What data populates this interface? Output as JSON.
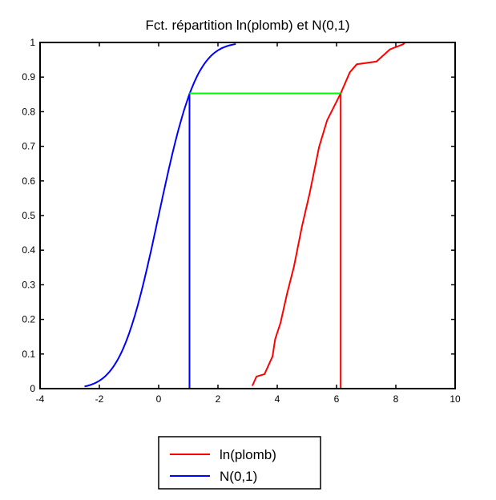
{
  "chart_data": {
    "type": "line",
    "title": "Fct. répartition ln(plomb) et N(0,1)",
    "xlabel": "",
    "ylabel": "",
    "xlim": [
      -4,
      10
    ],
    "ylim": [
      0,
      1
    ],
    "xticks": [
      "-4",
      "-2",
      "0",
      "2",
      "4",
      "6",
      "8",
      "10"
    ],
    "yticks": [
      "0",
      "0.1",
      "0.2",
      "0.3",
      "0.4",
      "0.5",
      "0.6",
      "0.7",
      "0.8",
      "0.9",
      "1"
    ],
    "grid": false,
    "legend_position": "below",
    "series": [
      {
        "name": "ln(plomb)",
        "color": "#ff0000",
        "x": [
          3.16,
          3.3,
          3.57,
          3.84,
          3.93,
          4.11,
          4.33,
          4.56,
          4.83,
          5.1,
          5.41,
          5.68,
          6.14,
          6.45,
          6.68,
          7.35,
          7.8,
          8.25,
          8.3
        ],
        "y": [
          0.008,
          0.035,
          0.042,
          0.093,
          0.143,
          0.19,
          0.274,
          0.351,
          0.467,
          0.567,
          0.698,
          0.775,
          0.853,
          0.914,
          0.937,
          0.945,
          0.98,
          0.995,
          1.0
        ]
      },
      {
        "name": "N(0,1)",
        "color": "#0000ff",
        "distribution": "standard normal CDF",
        "x_range": [
          -2.5,
          2.6
        ]
      }
    ],
    "annotations": [
      {
        "type": "vertical",
        "x": 1.04,
        "y": [
          0,
          0.853
        ],
        "color": "#0000ff"
      },
      {
        "type": "vertical",
        "x": 6.14,
        "y": [
          0,
          0.853
        ],
        "color": "#ff0000"
      },
      {
        "type": "horizontal",
        "y": 0.853,
        "x": [
          1.04,
          6.14
        ],
        "color": "#00ff00"
      }
    ]
  }
}
